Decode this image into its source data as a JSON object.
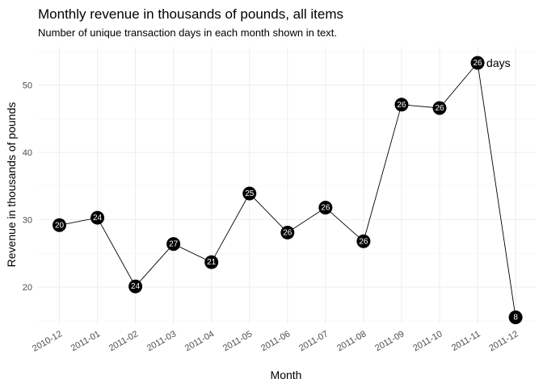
{
  "chart_data": {
    "type": "line",
    "title": "Monthly revenue in thousands of pounds, all items",
    "subtitle": "Number of unique transaction days in each month shown in text.",
    "xlabel": "Month",
    "ylabel": "Revenue in thousands of pounds",
    "categories": [
      "2010-12",
      "2011-01",
      "2011-02",
      "2011-03",
      "2011-04",
      "2011-05",
      "2011-06",
      "2011-07",
      "2011-08",
      "2011-09",
      "2011-10",
      "2011-11",
      "2011-12"
    ],
    "values": [
      29.2,
      30.3,
      20.1,
      26.4,
      23.7,
      33.9,
      28.1,
      31.8,
      26.8,
      47.1,
      46.6,
      53.3,
      15.5
    ],
    "point_labels": [
      "20",
      "24",
      "24",
      "27",
      "21",
      "25",
      "26",
      "26",
      "26",
      "26",
      "26",
      "26",
      "8"
    ],
    "yticks": [
      20,
      30,
      40,
      50
    ],
    "ylim": [
      14.5,
      55.7
    ],
    "grid": true,
    "annotation": "days",
    "legend": "none"
  }
}
